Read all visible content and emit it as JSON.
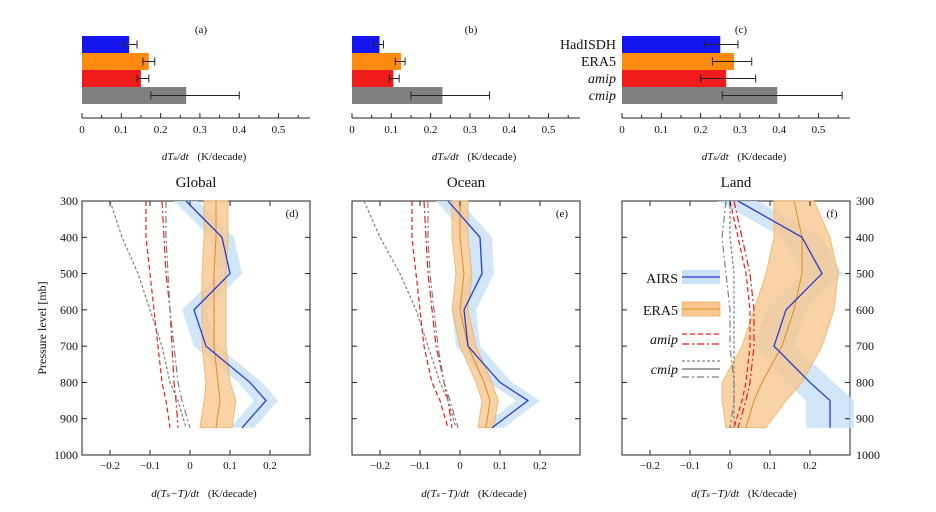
{
  "chart_data": [
    {
      "type": "bar",
      "panel_label": "(a)",
      "xlabel": "dT_s/dt   (K/decade)",
      "xlim": [
        0,
        0.58
      ],
      "xticks": [
        "0",
        "0.1",
        "0.2",
        "0.3",
        "0.4",
        "0.5"
      ],
      "categories": [
        "HadISDH",
        "ERA5",
        "amip",
        "cmip"
      ],
      "values": [
        0.12,
        0.17,
        0.15,
        0.265
      ],
      "errors_low": [
        0.105,
        0.155,
        0.14,
        0.175
      ],
      "errors_high": [
        0.14,
        0.185,
        0.17,
        0.4
      ]
    },
    {
      "type": "bar",
      "panel_label": "(b)",
      "xlabel": "dT_s/dt   (K/decade)",
      "xlim": [
        0,
        0.58
      ],
      "xticks": [
        "0",
        "0.1",
        "0.2",
        "0.3",
        "0.4",
        "0.5"
      ],
      "categories": [
        "HadISDH",
        "ERA5",
        "amip",
        "cmip"
      ],
      "values": [
        0.07,
        0.125,
        0.105,
        0.23
      ],
      "errors_low": [
        0.055,
        0.11,
        0.095,
        0.15
      ],
      "errors_high": [
        0.08,
        0.135,
        0.12,
        0.35
      ]
    },
    {
      "type": "bar",
      "panel_label": "(c)",
      "xlabel": "dT_s/dt   (K/decade)",
      "xlim": [
        0,
        0.58
      ],
      "xticks": [
        "0",
        "0.1",
        "0.2",
        "0.3",
        "0.4",
        "0.5"
      ],
      "categories": [
        "HadISDH",
        "ERA5",
        "amip",
        "cmip"
      ],
      "values": [
        0.25,
        0.285,
        0.265,
        0.395
      ],
      "errors_low": [
        0.21,
        0.23,
        0.2,
        0.255
      ],
      "errors_high": [
        0.295,
        0.33,
        0.34,
        0.56
      ]
    },
    {
      "type": "line",
      "panel_label": "(d)",
      "title": "Global",
      "xlabel": "d(T_s−T)/dt   (K/decade)",
      "ylabel": "Pressure level  [mb]",
      "xlim": [
        -0.27,
        0.3
      ],
      "ylim": [
        1000,
        300
      ],
      "xticks": [
        "−0.2",
        "−0.1",
        "0",
        "0.1",
        "0.2"
      ],
      "yticks": [
        "300",
        "400",
        "500",
        "600",
        "700",
        "800",
        "900",
        "1000"
      ],
      "pressure": [
        300,
        400,
        500,
        600,
        700,
        800,
        850,
        925
      ],
      "series": [
        {
          "name": "AIRS",
          "values": [
            -0.01,
            0.08,
            0.1,
            0.01,
            0.04,
            0.15,
            0.19,
            0.13
          ],
          "spread": [
            0.03,
            0.03,
            0.03,
            0.03,
            0.03,
            0.03,
            0.03,
            0.03
          ]
        },
        {
          "name": "ERA5",
          "values": [
            0.065,
            0.065,
            0.06,
            0.06,
            0.06,
            0.07,
            0.075,
            0.065
          ],
          "spread": [
            0.03,
            0.03,
            0.03,
            0.03,
            0.03,
            0.03,
            0.04,
            0.04
          ]
        },
        {
          "name": "amip",
          "values": [
            -0.11,
            -0.11,
            -0.1,
            -0.09,
            -0.08,
            -0.07,
            -0.06,
            -0.05
          ]
        },
        {
          "name": "amip",
          "values": [
            -0.07,
            -0.065,
            -0.06,
            -0.05,
            -0.045,
            -0.04,
            -0.035,
            -0.03
          ]
        },
        {
          "name": "cmip",
          "values": [
            -0.2,
            -0.17,
            -0.13,
            -0.1,
            -0.07,
            -0.05,
            -0.03,
            -0.01
          ]
        },
        {
          "name": "cmip",
          "values": [
            -0.06,
            -0.06,
            -0.055,
            -0.05,
            -0.04,
            -0.03,
            -0.02,
            0.0
          ]
        }
      ]
    },
    {
      "type": "line",
      "panel_label": "(e)",
      "title": "Ocean",
      "xlabel": "d(T_s−T)/dt   (K/decade)",
      "xlim": [
        -0.27,
        0.3
      ],
      "ylim": [
        1000,
        300
      ],
      "xticks": [
        "−0.2",
        "−0.1",
        "0",
        "0.1",
        "0.2"
      ],
      "pressure": [
        300,
        400,
        500,
        600,
        700,
        800,
        850,
        925
      ],
      "series": [
        {
          "name": "AIRS",
          "values": [
            -0.03,
            0.05,
            0.055,
            0.01,
            0.02,
            0.1,
            0.17,
            0.08
          ],
          "spread": [
            0.03,
            0.03,
            0.03,
            0.03,
            0.03,
            0.03,
            0.03,
            0.03
          ]
        },
        {
          "name": "ERA5",
          "values": [
            0.0,
            0.0,
            0.01,
            0.0,
            0.02,
            0.06,
            0.075,
            0.065
          ],
          "spread": [
            0.02,
            0.02,
            0.02,
            0.02,
            0.02,
            0.02,
            0.02,
            0.02
          ]
        },
        {
          "name": "amip",
          "values": [
            -0.12,
            -0.12,
            -0.11,
            -0.1,
            -0.09,
            -0.07,
            -0.05,
            -0.03
          ]
        },
        {
          "name": "amip",
          "values": [
            -0.09,
            -0.085,
            -0.08,
            -0.07,
            -0.06,
            -0.04,
            -0.03,
            -0.02
          ]
        },
        {
          "name": "cmip",
          "values": [
            -0.24,
            -0.2,
            -0.15,
            -0.11,
            -0.08,
            -0.05,
            -0.03,
            -0.01
          ]
        },
        {
          "name": "cmip",
          "values": [
            -0.08,
            -0.08,
            -0.075,
            -0.065,
            -0.055,
            -0.04,
            -0.025,
            -0.005
          ]
        }
      ]
    },
    {
      "type": "line",
      "panel_label": "(f)",
      "title": "Land",
      "xlabel": "d(T_s−T)/dt   (K/decade)",
      "y2label_ticks": [
        "300",
        "400",
        "500",
        "600",
        "700",
        "800",
        "900",
        "1000"
      ],
      "xlim": [
        -0.27,
        0.3
      ],
      "ylim": [
        1000,
        300
      ],
      "xticks": [
        "−0.2",
        "−0.1",
        "0",
        "0.1",
        "0.2"
      ],
      "pressure": [
        300,
        400,
        500,
        600,
        700,
        800,
        850,
        925
      ],
      "series": [
        {
          "name": "AIRS",
          "values": [
            0.02,
            0.18,
            0.23,
            0.14,
            0.11,
            0.2,
            0.25,
            0.25
          ],
          "spread": [
            0.05,
            0.05,
            0.05,
            0.05,
            0.05,
            0.06,
            0.06,
            0.06
          ]
        },
        {
          "name": "ERA5",
          "values": [
            0.16,
            0.18,
            0.18,
            0.16,
            0.13,
            0.08,
            0.06,
            0.04
          ],
          "spread": [
            0.05,
            0.07,
            0.09,
            0.1,
            0.1,
            0.1,
            0.08,
            0.05
          ]
        },
        {
          "name": "amip",
          "values": [
            0.0,
            0.02,
            0.04,
            0.05,
            0.05,
            0.04,
            0.03,
            0.01
          ]
        },
        {
          "name": "amip",
          "values": [
            0.01,
            0.03,
            0.05,
            0.06,
            0.06,
            0.05,
            0.04,
            0.02
          ]
        },
        {
          "name": "cmip",
          "values": [
            0.0,
            0.0,
            0.01,
            0.01,
            0.01,
            0.01,
            0.01,
            0.01
          ]
        },
        {
          "name": "cmip",
          "values": [
            -0.01,
            -0.02,
            -0.01,
            0.0,
            0.0,
            0.01,
            0.01,
            0.0
          ]
        }
      ]
    }
  ],
  "legend": {
    "bars": [
      "HadISDH",
      "ERA5",
      "amip",
      "cmip"
    ],
    "lines": [
      "AIRS",
      "ERA5",
      "amip",
      "cmip"
    ]
  },
  "colors": {
    "hadisdh": "#1515f0",
    "era5": "#ff8a10",
    "amip": "#f01c1c",
    "cmip": "#808080",
    "airs_line": "#2b3bd1",
    "airs_band": "#c9e2f7",
    "era5_line": "#e08a20",
    "era5_band": "#f8c890"
  }
}
